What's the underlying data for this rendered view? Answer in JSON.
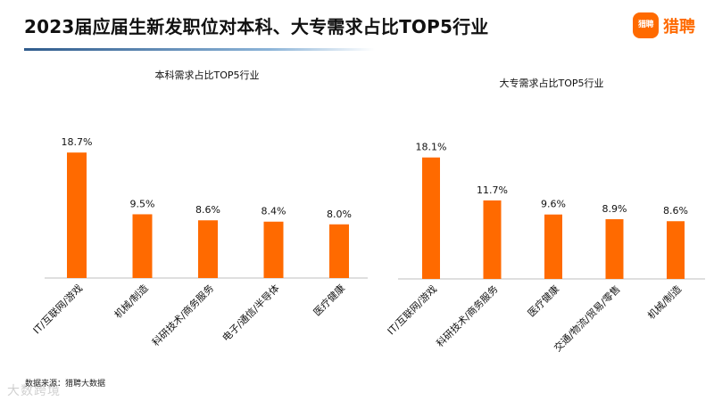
{
  "header": {
    "title": "2023届应届生新发职位对本科、大专需求占比TOP5行业",
    "logo_badge": "猎聘",
    "logo_text": "猎聘"
  },
  "footer": {
    "source": "数据来源：猎聘大数据",
    "watermark": "大数跨境"
  },
  "colors": {
    "bar": "#ff6a00",
    "axis": "#bfbfbf",
    "title_text": "#111111",
    "underline": "#2f5b8c"
  },
  "chart_data": [
    {
      "type": "bar",
      "title": "本科需求占比TOP5行业",
      "categories": [
        "IT/互联网/游戏",
        "机械/制造",
        "科研技术/商务服务",
        "电子/通信/半导体",
        "医疗健康"
      ],
      "values": [
        18.7,
        9.5,
        8.6,
        8.4,
        8.0
      ],
      "labels": [
        "18.7%",
        "9.5%",
        "8.6%",
        "8.4%",
        "8.0%"
      ],
      "ylim": [
        0,
        20
      ],
      "xlabel": "",
      "ylabel": "",
      "grid": false,
      "legend": "none"
    },
    {
      "type": "bar",
      "title": "大专需求占比TOP5行业",
      "categories": [
        "IT/互联网/游戏",
        "科研技术/商务服务",
        "医疗健康",
        "交通/物流/贸易/零售",
        "机械/制造"
      ],
      "values": [
        18.1,
        11.7,
        9.6,
        8.9,
        8.6
      ],
      "labels": [
        "18.1%",
        "11.7%",
        "9.6%",
        "8.9%",
        "8.6%"
      ],
      "ylim": [
        0,
        20
      ],
      "xlabel": "",
      "ylabel": "",
      "grid": false,
      "legend": "none"
    }
  ]
}
